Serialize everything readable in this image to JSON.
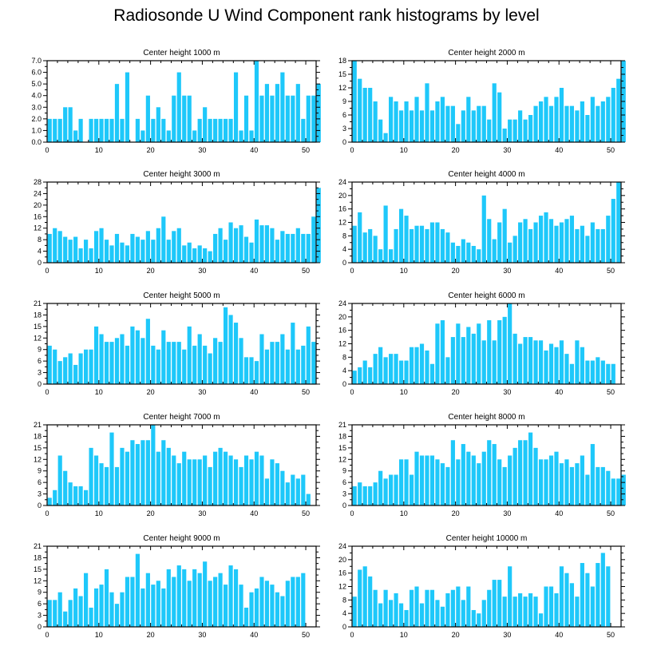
{
  "title": "Radiosonde U Wind Component rank histograms by level",
  "colors": {
    "bar": "#1ec8fa",
    "axis": "#000000",
    "background": "#ffffff"
  },
  "chart_data": [
    {
      "type": "bar",
      "title": "Center height 1000 m",
      "xlim": [
        0,
        52
      ],
      "ylim": [
        0,
        7
      ],
      "xticks": [
        0,
        10,
        20,
        30,
        40,
        50
      ],
      "yticks": [
        0,
        1,
        2,
        3,
        4,
        5,
        6,
        7
      ],
      "ytick_labels": [
        "0.0",
        "1.0",
        "2.0",
        "3.0",
        "4.0",
        "5.0",
        "6.0",
        "7.0"
      ],
      "values": [
        2,
        2,
        2,
        3,
        3,
        1,
        2,
        0,
        2,
        2,
        2,
        2,
        2,
        5,
        2,
        6,
        0,
        2,
        1,
        4,
        2,
        3,
        2,
        1,
        4,
        6,
        4,
        4,
        1,
        2,
        3,
        2,
        2,
        2,
        2,
        2,
        6,
        1,
        4,
        1,
        7,
        4,
        5,
        4,
        5,
        6,
        4,
        4,
        5,
        2,
        4,
        4,
        5
      ]
    },
    {
      "type": "bar",
      "title": "Center height 2000 m",
      "xlim": [
        0,
        52
      ],
      "ylim": [
        0,
        18
      ],
      "xticks": [
        0,
        10,
        20,
        30,
        40,
        50
      ],
      "yticks": [
        0,
        3,
        6,
        9,
        12,
        15,
        18
      ],
      "ytick_labels": [
        "0",
        "3",
        "6",
        "9",
        "12",
        "15",
        "18"
      ],
      "values": [
        18,
        14,
        12,
        12,
        9,
        5,
        2,
        10,
        9,
        7,
        9,
        7,
        10,
        7,
        13,
        7,
        9,
        10,
        8,
        8,
        4,
        7,
        10,
        7,
        8,
        8,
        5,
        13,
        11,
        3,
        5,
        5,
        7,
        5,
        6,
        8,
        9,
        10,
        8,
        10,
        12,
        8,
        8,
        7,
        9,
        6,
        10,
        8,
        9,
        10,
        12,
        14,
        18
      ]
    },
    {
      "type": "bar",
      "title": "Center height 3000 m",
      "xlim": [
        0,
        52
      ],
      "ylim": [
        0,
        28
      ],
      "xticks": [
        0,
        10,
        20,
        30,
        40,
        50
      ],
      "yticks": [
        0,
        4,
        8,
        12,
        16,
        20,
        24,
        28
      ],
      "ytick_labels": [
        "0",
        "4",
        "8",
        "12",
        "16",
        "20",
        "24",
        "28"
      ],
      "values": [
        10,
        12,
        11,
        9,
        8,
        9,
        5,
        8,
        5,
        11,
        12,
        8,
        6,
        10,
        7,
        6,
        10,
        9,
        8,
        11,
        8,
        12,
        16,
        8,
        11,
        12,
        6,
        7,
        5,
        6,
        5,
        4,
        10,
        12,
        8,
        14,
        12,
        13,
        9,
        7,
        15,
        13,
        13,
        12,
        8,
        11,
        10,
        10,
        12,
        10,
        10,
        16,
        26
      ]
    },
    {
      "type": "bar",
      "title": "Center height 4000 m",
      "xlim": [
        0,
        52
      ],
      "ylim": [
        0,
        24
      ],
      "xticks": [
        0,
        10,
        20,
        30,
        40,
        50
      ],
      "yticks": [
        0,
        4,
        8,
        12,
        16,
        20,
        24
      ],
      "ytick_labels": [
        "0",
        "4",
        "8",
        "12",
        "16",
        "20",
        "24"
      ],
      "values": [
        11,
        15,
        9,
        10,
        8,
        4,
        17,
        4,
        10,
        16,
        14,
        10,
        11,
        11,
        10,
        12,
        12,
        10,
        9,
        6,
        5,
        7,
        6,
        5,
        4,
        20,
        13,
        7,
        12,
        16,
        6,
        8,
        12,
        13,
        10,
        12,
        14,
        15,
        13,
        11,
        12,
        13,
        14,
        10,
        11,
        8,
        12,
        10,
        10,
        14,
        19,
        24
      ]
    },
    {
      "type": "bar",
      "title": "Center height 5000 m",
      "xlim": [
        0,
        52
      ],
      "ylim": [
        0,
        21
      ],
      "xticks": [
        0,
        10,
        20,
        30,
        40,
        50
      ],
      "yticks": [
        0,
        3,
        6,
        9,
        12,
        15,
        18,
        21
      ],
      "ytick_labels": [
        "0",
        "3",
        "6",
        "9",
        "12",
        "15",
        "18",
        "21"
      ],
      "values": [
        10,
        9,
        6,
        7,
        8,
        5,
        8,
        9,
        9,
        15,
        13,
        11,
        11,
        12,
        13,
        10,
        15,
        14,
        12,
        17,
        10,
        9,
        14,
        11,
        11,
        11,
        9,
        15,
        10,
        13,
        10,
        8,
        12,
        11,
        20,
        18,
        16,
        12,
        7,
        7,
        6,
        13,
        9,
        11,
        11,
        13,
        9,
        16,
        9,
        10,
        15,
        11
      ]
    },
    {
      "type": "bar",
      "title": "Center height 6000 m",
      "xlim": [
        0,
        52
      ],
      "ylim": [
        0,
        24
      ],
      "xticks": [
        0,
        10,
        20,
        30,
        40,
        50
      ],
      "yticks": [
        0,
        4,
        8,
        12,
        16,
        20,
        24
      ],
      "ytick_labels": [
        "0",
        "4",
        "8",
        "12",
        "16",
        "20",
        "24"
      ],
      "values": [
        4,
        5,
        7,
        5,
        9,
        11,
        8,
        9,
        9,
        7,
        7,
        11,
        11,
        12,
        10,
        6,
        18,
        19,
        8,
        14,
        18,
        14,
        17,
        15,
        18,
        13,
        19,
        13,
        19,
        20,
        24,
        15,
        12,
        14,
        14,
        13,
        13,
        10,
        12,
        11,
        13,
        9,
        6,
        13,
        11,
        7,
        7,
        8,
        7,
        6,
        6
      ]
    },
    {
      "type": "bar",
      "title": "Center height 7000 m",
      "xlim": [
        0,
        52
      ],
      "ylim": [
        0,
        21
      ],
      "xticks": [
        0,
        10,
        20,
        30,
        40,
        50
      ],
      "yticks": [
        0,
        3,
        6,
        9,
        12,
        15,
        18,
        21
      ],
      "ytick_labels": [
        "0",
        "3",
        "6",
        "9",
        "12",
        "15",
        "18",
        "21"
      ],
      "values": [
        2,
        4,
        13,
        9,
        6,
        5,
        5,
        4,
        15,
        13,
        11,
        10,
        19,
        10,
        15,
        14,
        17,
        16,
        17,
        17,
        21,
        14,
        17,
        15,
        13,
        11,
        14,
        12,
        12,
        12,
        13,
        10,
        14,
        15,
        14,
        13,
        12,
        10,
        13,
        12,
        14,
        13,
        7,
        12,
        11,
        9,
        6,
        8,
        7,
        8,
        3
      ]
    },
    {
      "type": "bar",
      "title": "Center height 8000 m",
      "xlim": [
        0,
        52
      ],
      "ylim": [
        0,
        21
      ],
      "xticks": [
        0,
        10,
        20,
        30,
        40,
        50
      ],
      "yticks": [
        0,
        3,
        6,
        9,
        12,
        15,
        18,
        21
      ],
      "ytick_labels": [
        "0",
        "3",
        "6",
        "9",
        "12",
        "15",
        "18",
        "21"
      ],
      "values": [
        5,
        6,
        5,
        5,
        6,
        9,
        7,
        8,
        8,
        12,
        12,
        8,
        14,
        13,
        13,
        13,
        12,
        11,
        10,
        17,
        12,
        16,
        14,
        13,
        11,
        14,
        17,
        16,
        12,
        10,
        13,
        15,
        17,
        17,
        19,
        15,
        12,
        12,
        13,
        14,
        11,
        12,
        10,
        11,
        13,
        8,
        16,
        10,
        10,
        9,
        7,
        7,
        8
      ]
    },
    {
      "type": "bar",
      "title": "Center height 9000 m",
      "xlim": [
        0,
        52
      ],
      "ylim": [
        0,
        21
      ],
      "xticks": [
        0,
        10,
        20,
        30,
        40,
        50
      ],
      "yticks": [
        0,
        3,
        6,
        9,
        12,
        15,
        18,
        21
      ],
      "ytick_labels": [
        "0",
        "3",
        "6",
        "9",
        "12",
        "15",
        "18",
        "21"
      ],
      "values": [
        7,
        7,
        9,
        4,
        7,
        10,
        8,
        14,
        5,
        10,
        11,
        15,
        9,
        6,
        9,
        13,
        13,
        19,
        10,
        14,
        11,
        12,
        10,
        15,
        13,
        16,
        15,
        12,
        15,
        14,
        17,
        12,
        13,
        14,
        11,
        16,
        15,
        11,
        5,
        9,
        10,
        13,
        12,
        11,
        9,
        8,
        12,
        13,
        13,
        14
      ]
    },
    {
      "type": "bar",
      "title": "Center height 10000 m",
      "xlim": [
        0,
        52
      ],
      "ylim": [
        0,
        24
      ],
      "xticks": [
        0,
        10,
        20,
        30,
        40,
        50
      ],
      "yticks": [
        0,
        4,
        8,
        12,
        16,
        20,
        24
      ],
      "ytick_labels": [
        "0",
        "4",
        "8",
        "12",
        "16",
        "20",
        "24"
      ],
      "values": [
        9,
        17,
        18,
        15,
        11,
        7,
        11,
        8,
        10,
        7,
        5,
        11,
        12,
        7,
        11,
        11,
        8,
        6,
        10,
        11,
        12,
        8,
        12,
        5,
        4,
        8,
        11,
        14,
        14,
        9,
        18,
        9,
        10,
        9,
        10,
        9,
        4,
        12,
        12,
        10,
        18,
        16,
        13,
        9,
        19,
        16,
        12,
        19,
        22,
        18
      ]
    }
  ]
}
